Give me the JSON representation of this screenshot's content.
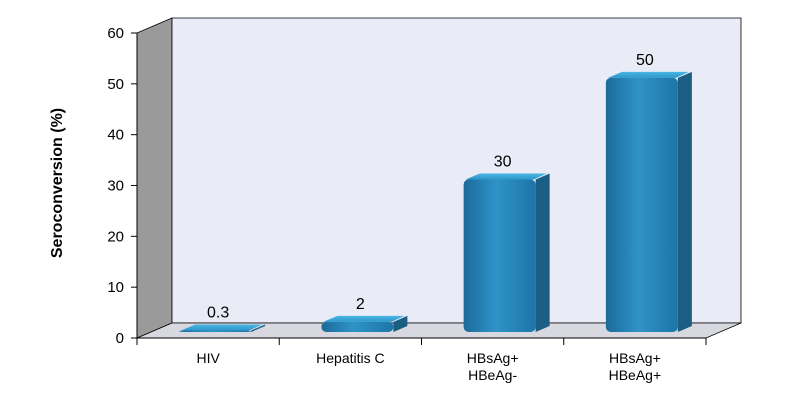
{
  "chart_data": {
    "type": "bar",
    "categories": [
      [
        "HIV"
      ],
      [
        "Hepatitis C"
      ],
      [
        "HBsAg+",
        "HBeAg-"
      ],
      [
        "HBsAg+",
        "HBeAg+"
      ]
    ],
    "values": [
      0.3,
      2,
      30,
      50
    ],
    "value_labels": [
      "0.3",
      "2",
      "30",
      "50"
    ],
    "ylabel": "Seroconversion (%)",
    "ylim": [
      0,
      60
    ],
    "yticks": [
      0,
      10,
      20,
      30,
      40,
      50,
      60
    ],
    "grid": false,
    "style": "3d",
    "colors": {
      "bar_front": "#2a8bbf",
      "bar_top": "#3aa9dc",
      "bar_side": "#1b5e84",
      "back_wall": "#e9ebf6",
      "side_wall": "#9a9a9a",
      "floor": "#d8d8e0"
    }
  }
}
